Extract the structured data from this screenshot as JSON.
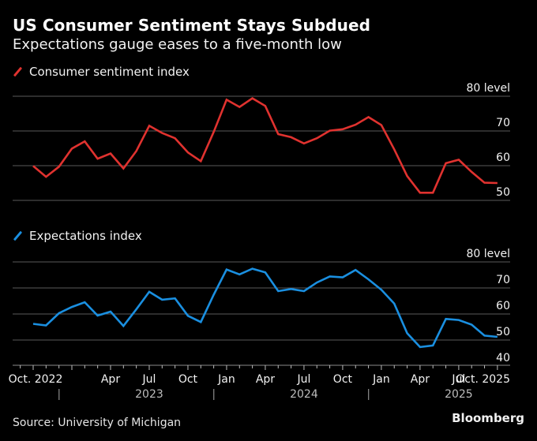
{
  "header": {
    "title": "US Consumer Sentiment Stays Subdued",
    "subtitle": "Expectations gauge eases to a five-month low"
  },
  "footer": {
    "source": "Source: University of Michigan",
    "brand": "Bloomberg"
  },
  "colors": {
    "sentiment": "#e0322f",
    "expectations": "#1a8fe0",
    "grid": "#5a5a5a",
    "axis": "#8a8a8a",
    "background": "#000000"
  },
  "chart_data": [
    {
      "type": "line",
      "title": "Consumer sentiment index",
      "legend": "top-left",
      "grid": true,
      "ylim": [
        50,
        80
      ],
      "yticks": [
        50,
        60,
        70,
        80
      ],
      "ytick_labels": [
        "50",
        "60",
        "70",
        "80 level"
      ],
      "x": [
        "Oct 2022",
        "Nov 2022",
        "Dec 2022",
        "Jan 2023",
        "Feb 2023",
        "Mar 2023",
        "Apr 2023",
        "May 2023",
        "Jun 2023",
        "Jul 2023",
        "Aug 2023",
        "Sep 2023",
        "Oct 2023",
        "Nov 2023",
        "Dec 2023",
        "Jan 2024",
        "Feb 2024",
        "Mar 2024",
        "Apr 2024",
        "May 2024",
        "Jun 2024",
        "Jul 2024",
        "Aug 2024",
        "Sep 2024",
        "Oct 2024",
        "Nov 2024",
        "Dec 2024",
        "Jan 2025",
        "Feb 2025",
        "Mar 2025",
        "Apr 2025",
        "May 2025",
        "Jun 2025",
        "Jul 2025",
        "Aug 2025",
        "Sep 2025",
        "Oct 2025"
      ],
      "series": [
        {
          "name": "Consumer sentiment index",
          "values": [
            59.9,
            56.8,
            59.7,
            64.9,
            67.0,
            62.0,
            63.5,
            59.2,
            64.2,
            71.5,
            69.4,
            67.9,
            63.8,
            61.3,
            69.7,
            79.0,
            76.9,
            79.4,
            77.2,
            69.1,
            68.2,
            66.4,
            67.9,
            70.1,
            70.5,
            71.8,
            74.0,
            71.7,
            64.7,
            57.0,
            52.2,
            52.2,
            60.7,
            61.7,
            58.2,
            55.1,
            55.0
          ]
        }
      ]
    },
    {
      "type": "line",
      "title": "Expectations index",
      "legend": "top-left",
      "grid": true,
      "ylim": [
        40,
        80
      ],
      "yticks": [
        40,
        50,
        60,
        70,
        80
      ],
      "ytick_labels": [
        "40",
        "50",
        "60",
        "70",
        "80 level"
      ],
      "x": [
        "Oct 2022",
        "Nov 2022",
        "Dec 2022",
        "Jan 2023",
        "Feb 2023",
        "Mar 2023",
        "Apr 2023",
        "May 2023",
        "Jun 2023",
        "Jul 2023",
        "Aug 2023",
        "Sep 2023",
        "Oct 2023",
        "Nov 2023",
        "Dec 2023",
        "Jan 2024",
        "Feb 2024",
        "Mar 2024",
        "Apr 2024",
        "May 2024",
        "Jun 2024",
        "Jul 2024",
        "Aug 2024",
        "Sep 2024",
        "Oct 2024",
        "Nov 2024",
        "Dec 2024",
        "Jan 2025",
        "Feb 2025",
        "Mar 2025",
        "Apr 2025",
        "May 2025",
        "Jun 2025",
        "Jul 2025",
        "Aug 2025",
        "Sep 2025",
        "Oct 2025"
      ],
      "series": [
        {
          "name": "Expectations index",
          "values": [
            56.2,
            55.6,
            60.3,
            62.7,
            64.5,
            59.4,
            60.9,
            55.4,
            61.8,
            68.5,
            65.5,
            66.0,
            59.3,
            56.9,
            67.4,
            77.1,
            75.2,
            77.4,
            76.0,
            68.8,
            69.6,
            68.8,
            72.1,
            74.4,
            74.1,
            76.9,
            73.3,
            69.3,
            64.0,
            52.6,
            47.3,
            47.9,
            58.1,
            57.7,
            55.9,
            51.7,
            51.2
          ]
        }
      ]
    }
  ],
  "xaxis": {
    "month_labels": [
      {
        "index": 0,
        "label": "Oct. 2022"
      },
      {
        "index": 6,
        "label": "Apr"
      },
      {
        "index": 9,
        "label": "Jul"
      },
      {
        "index": 12,
        "label": "Oct"
      },
      {
        "index": 15,
        "label": "Jan"
      },
      {
        "index": 18,
        "label": "Apr"
      },
      {
        "index": 21,
        "label": "Jul"
      },
      {
        "index": 24,
        "label": "Oct"
      },
      {
        "index": 27,
        "label": "Jan"
      },
      {
        "index": 30,
        "label": "Apr"
      },
      {
        "index": 33,
        "label": "Jul"
      },
      {
        "index": 36,
        "label": "Oct. 2025"
      }
    ],
    "year_labels": [
      {
        "center_index": 9,
        "label": "2023"
      },
      {
        "center_index": 21,
        "label": "2024"
      },
      {
        "center_index": 33,
        "label": "2025"
      }
    ],
    "year_separators": [
      2.5,
      14.5,
      26.5
    ]
  }
}
